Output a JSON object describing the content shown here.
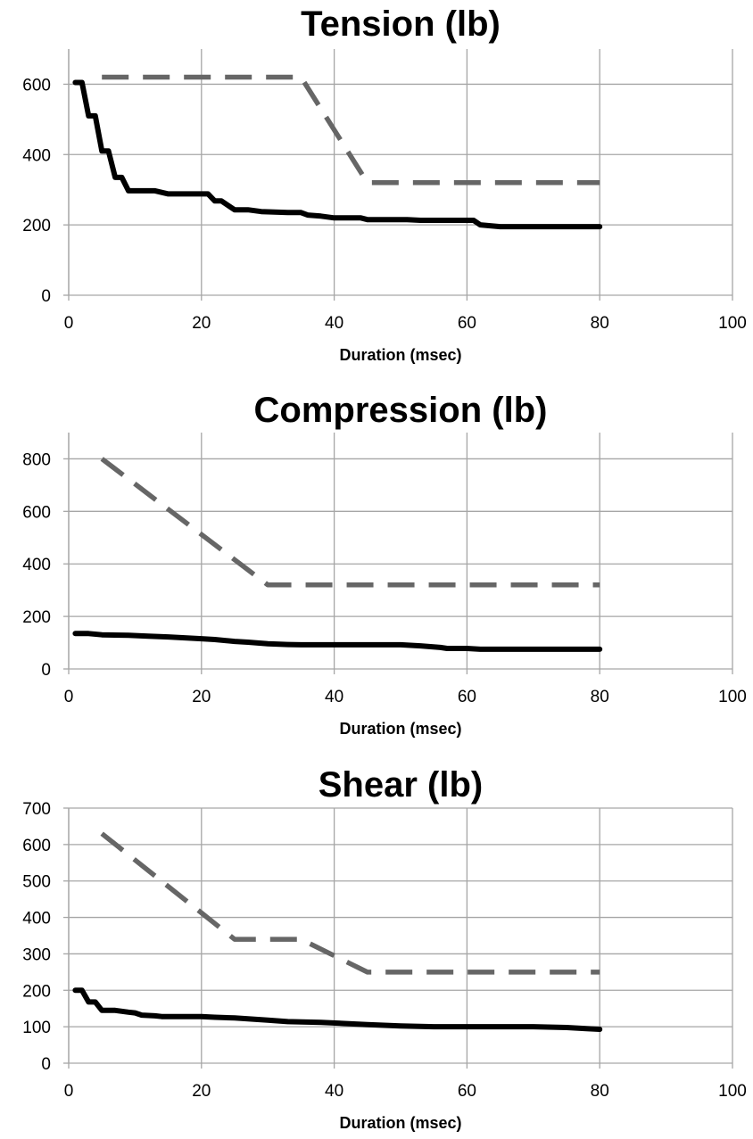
{
  "chart_data": [
    {
      "type": "line",
      "title": "Tension (lb)",
      "xlabel": "Duration (msec)",
      "ylabel": "",
      "xlim": [
        0,
        100
      ],
      "ylim": [
        0,
        700
      ],
      "x_ticks": [
        0,
        20,
        40,
        60,
        80,
        100
      ],
      "y_ticks": [
        0,
        200,
        400,
        600
      ],
      "grid": true,
      "legend": "none",
      "series": [
        {
          "style": "solid",
          "color": "#000000",
          "points": [
            [
              1,
              605
            ],
            [
              2,
              605
            ],
            [
              3,
              510
            ],
            [
              4,
              510
            ],
            [
              5,
              410
            ],
            [
              6,
              410
            ],
            [
              7,
              335
            ],
            [
              8,
              335
            ],
            [
              9,
              297
            ],
            [
              10,
              297
            ],
            [
              13,
              297
            ],
            [
              15,
              288
            ],
            [
              21,
              288
            ],
            [
              22,
              268
            ],
            [
              23,
              268
            ],
            [
              25,
              243
            ],
            [
              27,
              243
            ],
            [
              29,
              238
            ],
            [
              33,
              235
            ],
            [
              35,
              235
            ],
            [
              36,
              228
            ],
            [
              38,
              225
            ],
            [
              40,
              220
            ],
            [
              44,
              220
            ],
            [
              45,
              215
            ],
            [
              51,
              215
            ],
            [
              53,
              213
            ],
            [
              61,
              213
            ],
            [
              62,
              200
            ],
            [
              65,
              195
            ],
            [
              80,
              195
            ]
          ]
        },
        {
          "style": "dashed",
          "color": "#666666",
          "points": [
            [
              5,
              620
            ],
            [
              35,
              620
            ],
            [
              45,
              320
            ],
            [
              80,
              320
            ]
          ]
        }
      ]
    },
    {
      "type": "line",
      "title": "Compression (lb)",
      "xlabel": "Duration (msec)",
      "ylabel": "",
      "xlim": [
        0,
        100
      ],
      "ylim": [
        0,
        900
      ],
      "x_ticks": [
        0,
        20,
        40,
        60,
        80,
        100
      ],
      "y_ticks": [
        0,
        200,
        400,
        600,
        800
      ],
      "grid": true,
      "legend": "none",
      "series": [
        {
          "style": "solid",
          "color": "#000000",
          "points": [
            [
              1,
              135
            ],
            [
              3,
              135
            ],
            [
              5,
              130
            ],
            [
              9,
              128
            ],
            [
              12,
              125
            ],
            [
              15,
              122
            ],
            [
              20,
              115
            ],
            [
              22,
              112
            ],
            [
              25,
              105
            ],
            [
              27,
              102
            ],
            [
              30,
              96
            ],
            [
              33,
              93
            ],
            [
              35,
              92
            ],
            [
              50,
              92
            ],
            [
              53,
              88
            ],
            [
              56,
              82
            ],
            [
              57,
              78
            ],
            [
              60,
              78
            ],
            [
              62,
              75
            ],
            [
              80,
              75
            ]
          ]
        },
        {
          "style": "dashed",
          "color": "#666666",
          "points": [
            [
              5,
              800
            ],
            [
              30,
              320
            ],
            [
              80,
              320
            ]
          ]
        }
      ]
    },
    {
      "type": "line",
      "title": "Shear (lb)",
      "xlabel": "Duration (msec)",
      "ylabel": "",
      "xlim": [
        0,
        100
      ],
      "ylim": [
        0,
        700
      ],
      "x_ticks": [
        0,
        20,
        40,
        60,
        80,
        100
      ],
      "y_ticks": [
        0,
        100,
        200,
        300,
        400,
        500,
        600,
        700
      ],
      "grid": true,
      "legend": "none",
      "series": [
        {
          "style": "solid",
          "color": "#000000",
          "points": [
            [
              1,
              200
            ],
            [
              2,
              200
            ],
            [
              3,
              168
            ],
            [
              4,
              168
            ],
            [
              5,
              145
            ],
            [
              7,
              145
            ],
            [
              9,
              140
            ],
            [
              10,
              138
            ],
            [
              11,
              132
            ],
            [
              13,
              130
            ],
            [
              14,
              128
            ],
            [
              20,
              128
            ],
            [
              22,
              126
            ],
            [
              25,
              124
            ],
            [
              27,
              122
            ],
            [
              30,
              118
            ],
            [
              33,
              114
            ],
            [
              38,
              112
            ],
            [
              45,
              106
            ],
            [
              50,
              102
            ],
            [
              55,
              100
            ],
            [
              70,
              100
            ],
            [
              75,
              98
            ],
            [
              78,
              95
            ],
            [
              80,
              93
            ]
          ]
        },
        {
          "style": "dashed",
          "color": "#666666",
          "points": [
            [
              5,
              630
            ],
            [
              25,
              340
            ],
            [
              35,
              340
            ],
            [
              45,
              250
            ],
            [
              80,
              250
            ]
          ]
        }
      ]
    }
  ]
}
